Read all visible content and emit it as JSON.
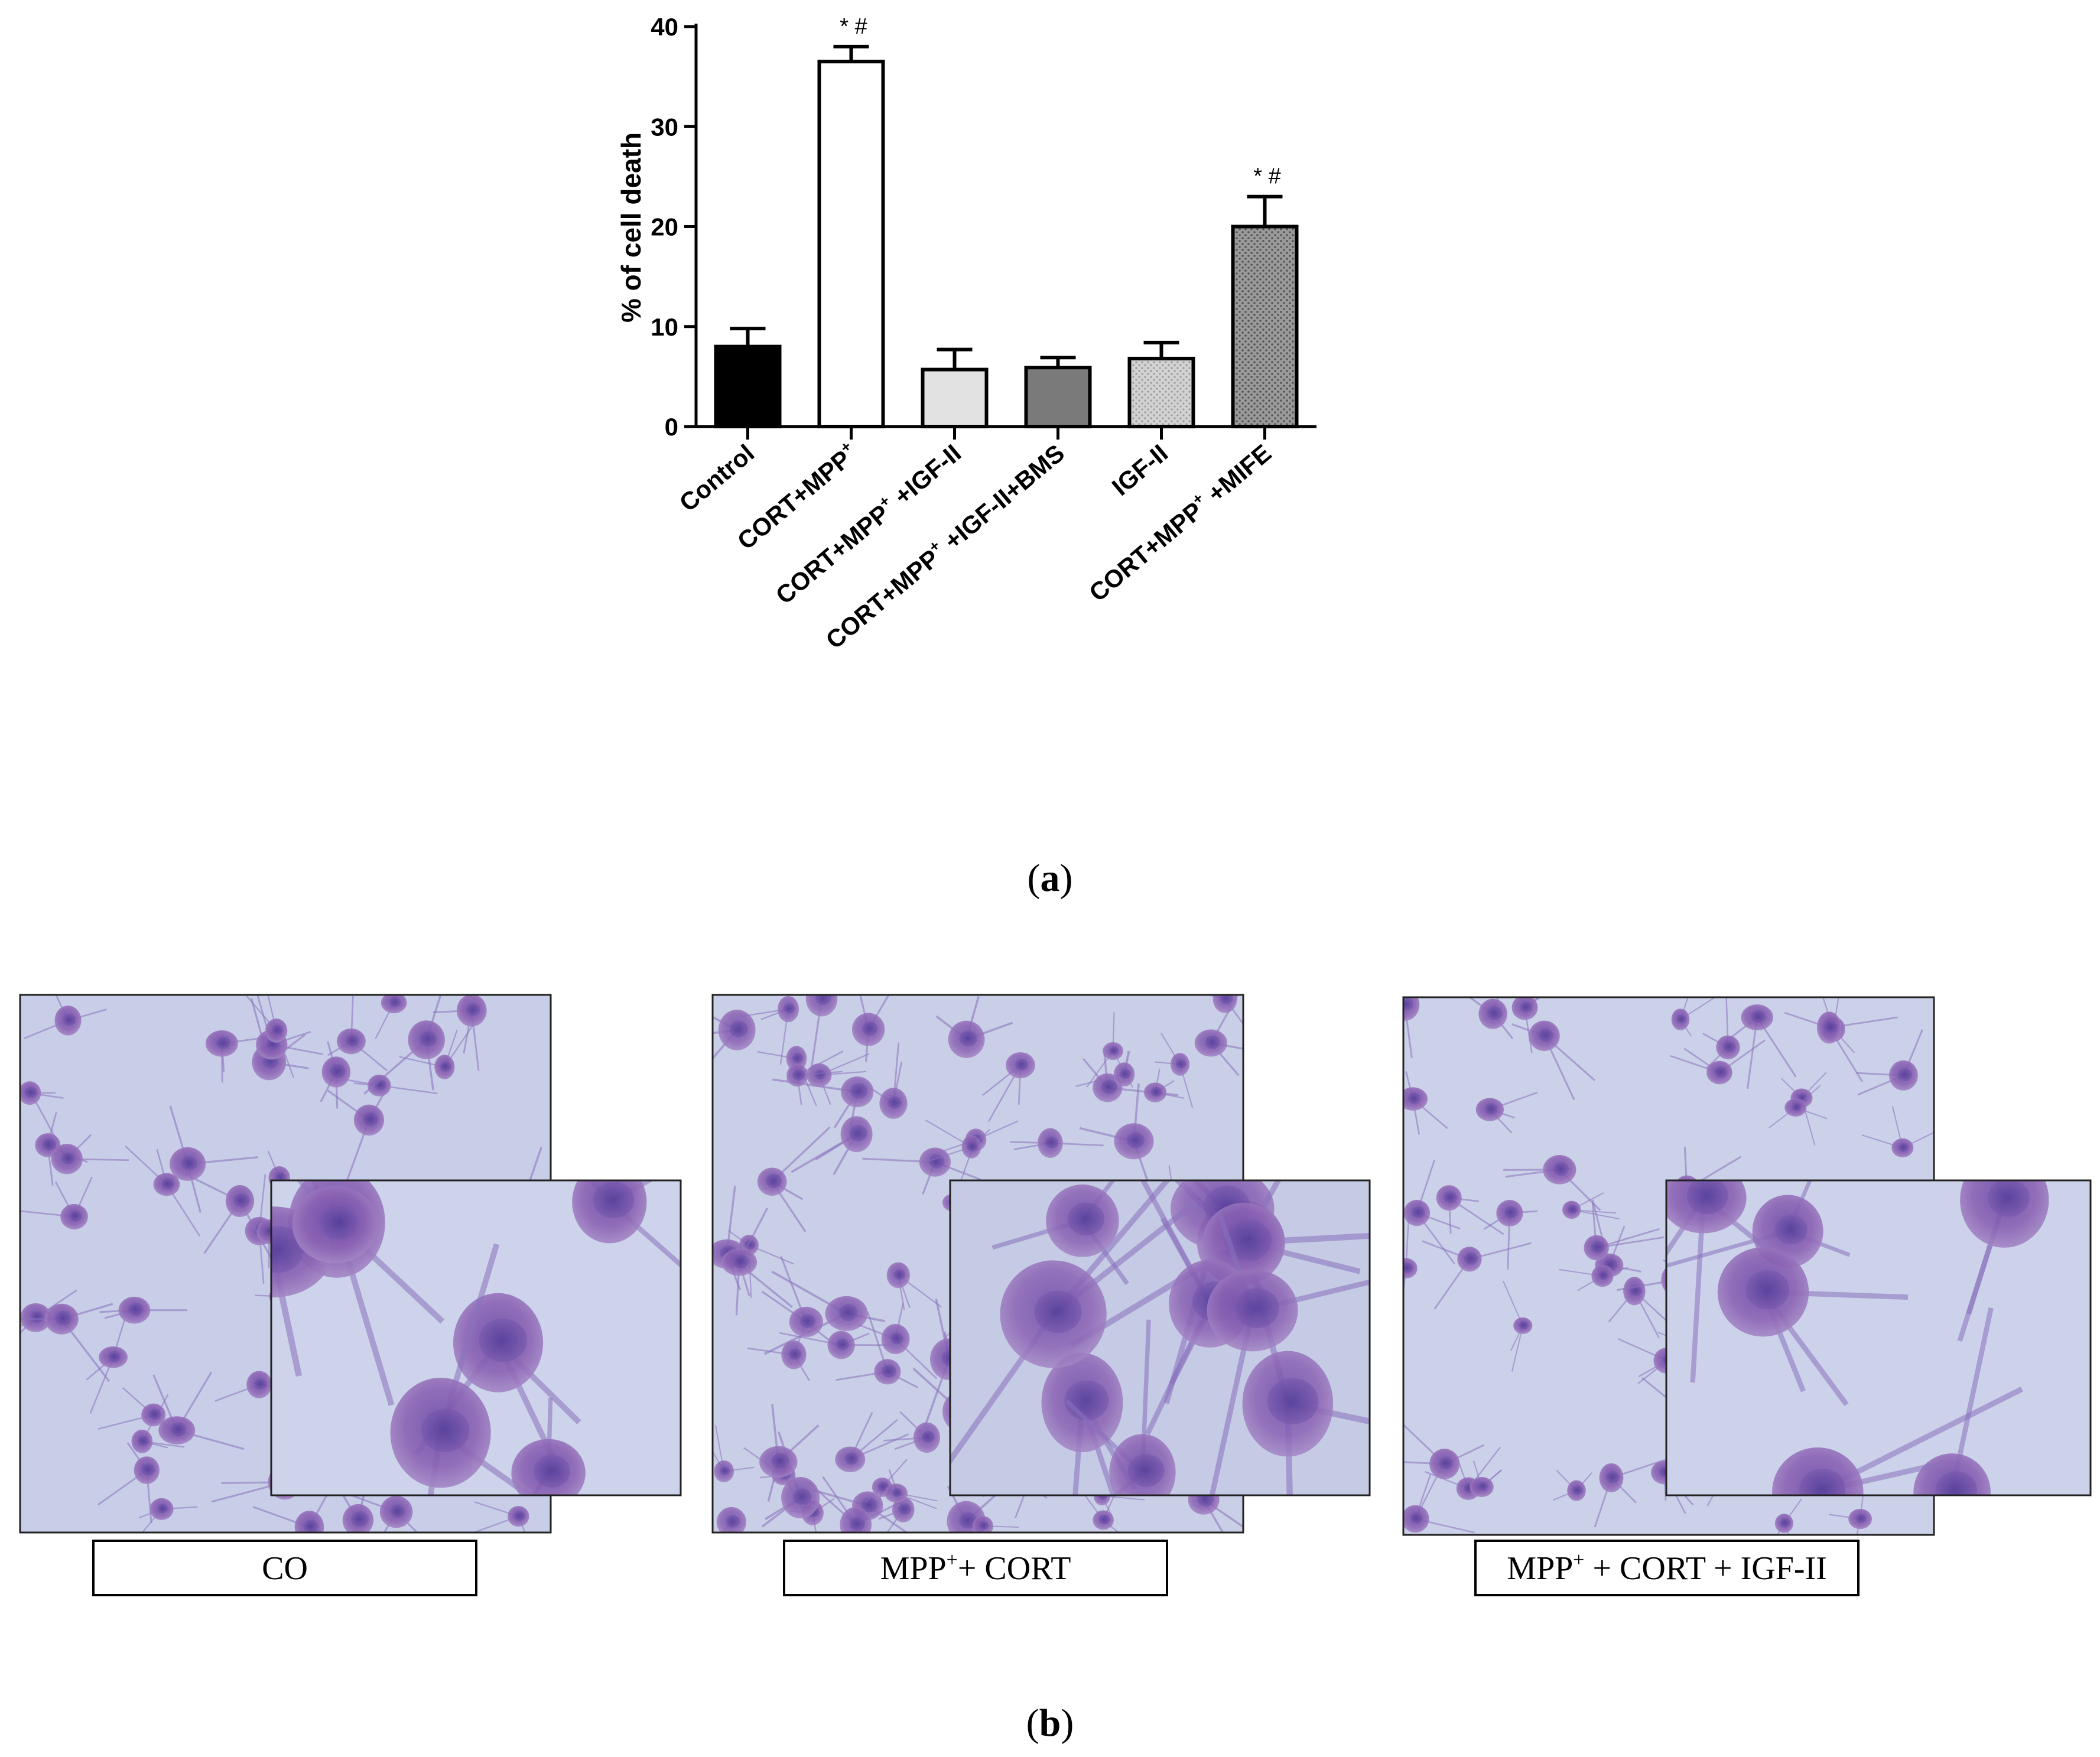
{
  "chart_data": {
    "type": "bar",
    "ylabel": "% of cell death",
    "ylim": [
      0,
      40
    ],
    "yticks": [
      "0",
      "10",
      "20",
      "30",
      "40"
    ],
    "categories": [
      {
        "label": "Control",
        "sup": ""
      },
      {
        "label": "CORT+MPP",
        "sup": "+"
      },
      {
        "label": "CORT+MPP",
        "sup": "+",
        "suffix": " +IGF-II"
      },
      {
        "label": "CORT+MPP",
        "sup": "+",
        "suffix": " +IGF-II+BMS"
      },
      {
        "label": "IGF-II",
        "sup": ""
      },
      {
        "label": "CORT+MPP",
        "sup": "+",
        "suffix": " +MIFE"
      }
    ],
    "values": [
      8.0,
      36.5,
      5.7,
      5.9,
      6.8,
      20.0
    ],
    "errors": [
      1.8,
      1.5,
      2.0,
      1.0,
      1.6,
      3.0
    ],
    "significance": [
      "",
      "* #",
      "",
      "",
      "",
      "* #"
    ],
    "bar_colors": [
      "#000000",
      "#ffffff",
      "#e2e2e2",
      "#7a7a7a",
      "#cfcfcf",
      "#8f8f8f"
    ]
  },
  "panel_a": {
    "label": "(a)",
    "letter": "a"
  },
  "panel_b": {
    "label": "(b)",
    "letter": "b",
    "micrographs": [
      {
        "caption": "CO"
      },
      {
        "caption_pre": "MPP",
        "caption_sup": "+",
        "caption_post": "+ CORT"
      },
      {
        "caption_pre": "MPP",
        "caption_sup": "+",
        "caption_post": " + CORT + IGF-II"
      }
    ]
  }
}
